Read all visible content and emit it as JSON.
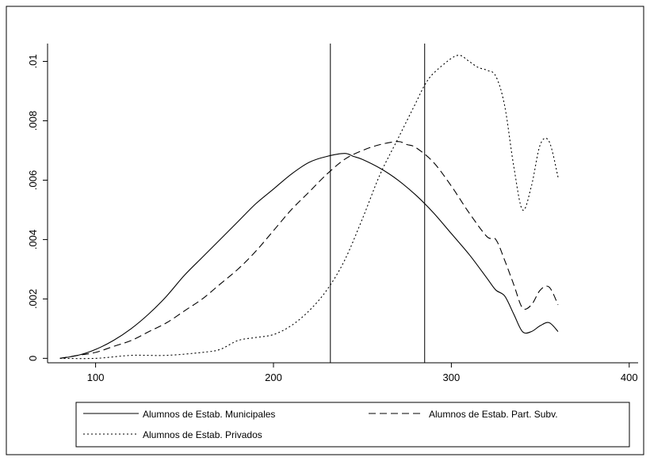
{
  "chart_data": {
    "type": "line",
    "title": "",
    "xlabel": "",
    "ylabel": "",
    "xlim": [
      73,
      405
    ],
    "ylim": [
      -0.00015,
      0.0106
    ],
    "xticks": [
      100,
      200,
      300,
      400
    ],
    "xtick_labels": [
      "100",
      "200",
      "300",
      "400"
    ],
    "yticks": [
      0,
      0.002,
      0.004,
      0.006,
      0.008,
      0.01
    ],
    "ytick_labels": [
      "0",
      ".002",
      ".004",
      ".006",
      ".008",
      ".01"
    ],
    "grid": false,
    "legend_position": "bottom",
    "vlines": [
      232,
      285
    ],
    "series": [
      {
        "name": "Alumnos de Estab. Municipales",
        "dash": "solid",
        "x": [
          80,
          90,
          100,
          110,
          120,
          130,
          140,
          150,
          160,
          170,
          180,
          190,
          200,
          210,
          220,
          230,
          240,
          245,
          250,
          260,
          270,
          280,
          290,
          300,
          310,
          320,
          325,
          330,
          335,
          340,
          345,
          350,
          355,
          360
        ],
        "y": [
          0.0,
          0.0001,
          0.0003,
          0.0006,
          0.001,
          0.0015,
          0.0021,
          0.0028,
          0.0034,
          0.004,
          0.0046,
          0.0052,
          0.0057,
          0.0062,
          0.0066,
          0.0068,
          0.0069,
          0.0068,
          0.0067,
          0.0064,
          0.006,
          0.0055,
          0.0049,
          0.0042,
          0.0035,
          0.0027,
          0.0023,
          0.0021,
          0.0015,
          0.0009,
          0.0009,
          0.0011,
          0.0012,
          0.0009
        ]
      },
      {
        "name": "Alumnos de Estab. Part. Subv.",
        "dash": "dashed",
        "x": [
          80,
          90,
          100,
          110,
          120,
          130,
          140,
          150,
          160,
          170,
          180,
          190,
          200,
          210,
          220,
          230,
          240,
          250,
          260,
          270,
          275,
          280,
          290,
          300,
          310,
          320,
          325,
          330,
          335,
          340,
          345,
          350,
          355,
          360
        ],
        "y": [
          0.0,
          0.0001,
          0.0002,
          0.0004,
          0.0006,
          0.0009,
          0.0012,
          0.0016,
          0.002,
          0.0025,
          0.003,
          0.0036,
          0.0043,
          0.005,
          0.0056,
          0.0062,
          0.0067,
          0.007,
          0.0072,
          0.0073,
          0.0072,
          0.0071,
          0.0066,
          0.0058,
          0.0049,
          0.0041,
          0.004,
          0.0033,
          0.0025,
          0.0017,
          0.0018,
          0.0023,
          0.0024,
          0.0018
        ]
      },
      {
        "name": "Alumnos de Estab. Privados",
        "dash": "dotted",
        "x": [
          80,
          100,
          120,
          140,
          160,
          170,
          180,
          190,
          200,
          210,
          220,
          230,
          240,
          250,
          260,
          270,
          280,
          285,
          290,
          300,
          305,
          310,
          315,
          320,
          325,
          330,
          335,
          340,
          345,
          350,
          355,
          360
        ],
        "y": [
          0.0,
          0.0,
          0.0001,
          0.0001,
          0.0002,
          0.0003,
          0.0006,
          0.0007,
          0.0008,
          0.0011,
          0.0016,
          0.0023,
          0.0033,
          0.0047,
          0.0062,
          0.0074,
          0.0086,
          0.0092,
          0.0096,
          0.0101,
          0.0102,
          0.01,
          0.0098,
          0.0097,
          0.0095,
          0.0085,
          0.0065,
          0.005,
          0.0058,
          0.0072,
          0.0073,
          0.0061
        ]
      }
    ]
  }
}
